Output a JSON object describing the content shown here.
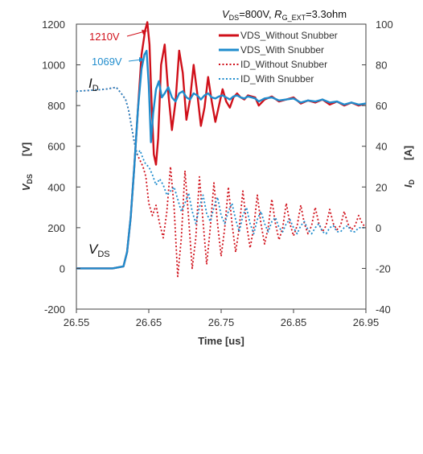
{
  "chart_data": {
    "type": "line",
    "title": {
      "v_sym": "V",
      "v_sub": "DS",
      "v_val": "=800V, ",
      "r_sym": "R",
      "r_sub": "G_EXT",
      "r_val": "=3.3ohm"
    },
    "xlabel": "Time [us]",
    "ylabel_left": {
      "sym": "V",
      "sub": "DS",
      "unit": "[V]"
    },
    "ylabel_right": {
      "sym": "I",
      "sub": "D",
      "unit": "[A]"
    },
    "xlim": [
      26.55,
      26.95
    ],
    "ylim_left": [
      -200,
      1200
    ],
    "ylim_right": [
      -40,
      100
    ],
    "x_ticks": [
      "26.55",
      "26.65",
      "26.75",
      "26.85",
      "26.95"
    ],
    "y_left_ticks": [
      "-200",
      "0",
      "200",
      "400",
      "600",
      "800",
      "1000",
      "1200"
    ],
    "y_right_ticks": [
      "-40",
      "-20",
      "0",
      "20",
      "40",
      "60",
      "80",
      "100"
    ],
    "grid": false,
    "legend_position": "top-right",
    "annotations": {
      "peak_without": "1210V",
      "peak_with": "1069V",
      "id_label": {
        "sym": "I",
        "sub": "D"
      },
      "vds_label": {
        "sym": "V",
        "sub": "DS"
      }
    },
    "colors": {
      "without": "#d0101a",
      "with": "#1f8ccd"
    },
    "series": [
      {
        "name": "VDS_Without Snubber",
        "axis": "left",
        "style": "solid",
        "x": [
          26.55,
          26.6,
          26.615,
          26.62,
          26.625,
          26.63,
          26.635,
          26.64,
          26.645,
          26.648,
          26.651,
          26.654,
          26.657,
          26.66,
          26.663,
          26.667,
          26.672,
          26.677,
          26.682,
          26.687,
          26.692,
          26.697,
          26.702,
          26.707,
          26.712,
          26.717,
          26.722,
          26.727,
          26.732,
          26.737,
          26.742,
          26.747,
          26.752,
          26.757,
          26.762,
          26.767,
          26.772,
          26.777,
          26.782,
          26.787,
          26.792,
          26.797,
          26.802,
          26.81,
          26.82,
          26.83,
          26.84,
          26.85,
          26.86,
          26.87,
          26.88,
          26.89,
          26.9,
          26.91,
          26.92,
          26.93,
          26.94,
          26.95
        ],
        "y": [
          0,
          0,
          10,
          80,
          250,
          500,
          780,
          1050,
          1170,
          1210,
          1100,
          800,
          560,
          510,
          640,
          1000,
          1100,
          860,
          680,
          820,
          1070,
          960,
          730,
          830,
          1000,
          860,
          700,
          790,
          940,
          820,
          720,
          800,
          880,
          820,
          790,
          840,
          860,
          840,
          830,
          850,
          845,
          840,
          800,
          830,
          845,
          820,
          830,
          840,
          810,
          825,
          815,
          830,
          805,
          820,
          800,
          815,
          800,
          810
        ]
      },
      {
        "name": "VDS_With Snubber",
        "axis": "left",
        "style": "solid",
        "x": [
          26.55,
          26.6,
          26.615,
          26.62,
          26.625,
          26.63,
          26.635,
          26.64,
          26.644,
          26.647,
          26.65,
          26.653,
          26.656,
          26.66,
          26.664,
          26.668,
          26.672,
          26.677,
          26.682,
          26.687,
          26.692,
          26.697,
          26.702,
          26.707,
          26.712,
          26.717,
          26.722,
          26.727,
          26.732,
          26.737,
          26.742,
          26.747,
          26.752,
          26.757,
          26.762,
          26.767,
          26.772,
          26.777,
          26.782,
          26.787,
          26.792,
          26.797,
          26.802,
          26.81,
          26.82,
          26.83,
          26.84,
          26.85,
          26.86,
          26.87,
          26.88,
          26.89,
          26.9,
          26.91,
          26.92,
          26.93,
          26.94,
          26.95
        ],
        "y": [
          0,
          0,
          10,
          80,
          250,
          500,
          780,
          980,
          1050,
          1069,
          900,
          620,
          760,
          880,
          920,
          840,
          860,
          890,
          840,
          820,
          860,
          870,
          840,
          830,
          860,
          850,
          830,
          850,
          860,
          840,
          835,
          845,
          850,
          840,
          830,
          845,
          850,
          840,
          835,
          845,
          840,
          835,
          820,
          835,
          840,
          825,
          830,
          835,
          815,
          825,
          820,
          830,
          815,
          820,
          805,
          815,
          805,
          810
        ]
      },
      {
        "name": "ID_Without Snubber",
        "axis": "right",
        "style": "dotted",
        "x": [
          26.55,
          26.59,
          26.605,
          26.612,
          26.618,
          26.622,
          26.626,
          26.63,
          26.634,
          26.638,
          26.642,
          26.646,
          26.65,
          26.655,
          26.66,
          26.665,
          26.67,
          26.675,
          26.68,
          26.685,
          26.69,
          26.695,
          26.7,
          26.705,
          26.71,
          26.715,
          26.72,
          26.725,
          26.73,
          26.735,
          26.74,
          26.745,
          26.75,
          26.755,
          26.76,
          26.765,
          26.77,
          26.775,
          26.78,
          26.785,
          26.79,
          26.795,
          26.8,
          26.805,
          26.81,
          26.815,
          26.82,
          26.825,
          26.83,
          26.835,
          26.84,
          26.845,
          26.85,
          26.855,
          26.86,
          26.865,
          26.87,
          26.875,
          26.88,
          26.885,
          26.89,
          26.895,
          26.9,
          26.905,
          26.91,
          26.915,
          26.92,
          26.925,
          26.93,
          26.935,
          26.94,
          26.945,
          26.95
        ],
        "y": [
          67,
          68,
          69,
          66,
          63,
          58,
          50,
          42,
          36,
          33,
          30,
          25,
          12,
          6,
          11,
          2,
          -5,
          8,
          30,
          10,
          -24,
          -5,
          28,
          5,
          -20,
          -5,
          25,
          3,
          -18,
          0,
          22,
          2,
          -14,
          0,
          20,
          2,
          -12,
          0,
          18,
          2,
          -10,
          0,
          16,
          2,
          -8,
          0,
          14,
          2,
          -6,
          0,
          12,
          2,
          -4,
          1,
          11,
          2,
          -3,
          1,
          10,
          2,
          -2,
          1,
          9,
          2,
          -1,
          1,
          8,
          2,
          -1,
          1,
          6,
          2,
          0
        ]
      },
      {
        "name": "ID_With Snubber",
        "axis": "right",
        "style": "dotted",
        "x": [
          26.55,
          26.59,
          26.605,
          26.612,
          26.618,
          26.622,
          26.626,
          26.63,
          26.634,
          26.638,
          26.642,
          26.646,
          26.65,
          26.655,
          26.66,
          26.665,
          26.67,
          26.675,
          26.68,
          26.685,
          26.69,
          26.695,
          26.7,
          26.705,
          26.71,
          26.715,
          26.72,
          26.725,
          26.73,
          26.735,
          26.74,
          26.745,
          26.75,
          26.755,
          26.76,
          26.765,
          26.77,
          26.775,
          26.78,
          26.785,
          26.79,
          26.795,
          26.8,
          26.805,
          26.81,
          26.815,
          26.82,
          26.825,
          26.83,
          26.835,
          26.84,
          26.845,
          26.85,
          26.855,
          26.86,
          26.865,
          26.87,
          26.875,
          26.88,
          26.885,
          26.89,
          26.895,
          26.9,
          26.905,
          26.91,
          26.915,
          26.92,
          26.925,
          26.93,
          26.935,
          26.94,
          26.945,
          26.95
        ],
        "y": [
          67,
          68,
          69,
          66,
          63,
          58,
          50,
          42,
          36,
          38,
          34,
          31,
          30,
          26,
          21,
          24,
          21,
          16,
          18,
          20,
          14,
          8,
          12,
          17,
          8,
          2,
          10,
          16,
          7,
          3,
          10,
          15,
          6,
          2,
          8,
          12,
          4,
          -2,
          6,
          10,
          2,
          -3,
          4,
          8,
          2,
          -2,
          3,
          5,
          0,
          -2,
          2,
          4,
          0,
          -3,
          1,
          3,
          -1,
          -3,
          0,
          2,
          -2,
          -3,
          0,
          1,
          -2,
          -2,
          0,
          1,
          -2,
          -2,
          0,
          0,
          0
        ]
      }
    ]
  }
}
